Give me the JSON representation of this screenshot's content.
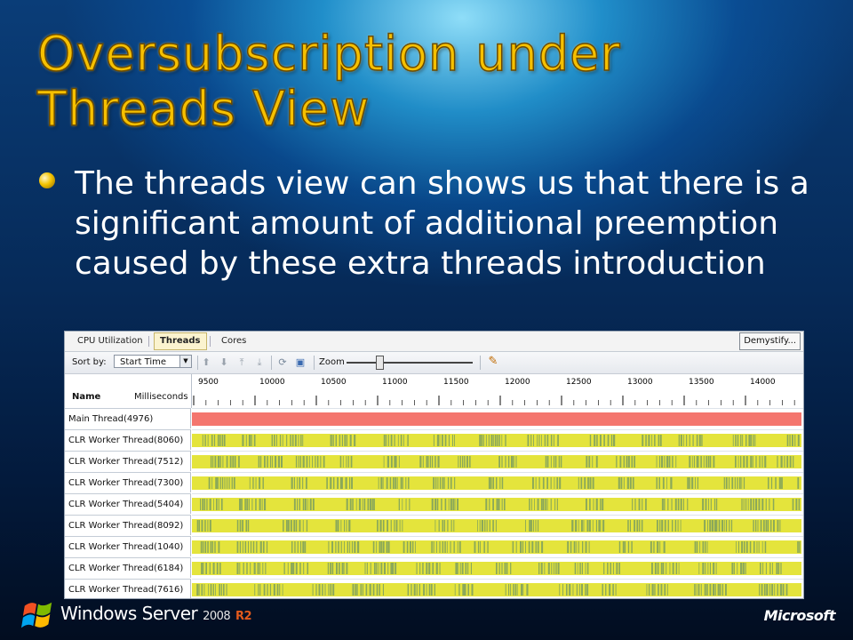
{
  "slide": {
    "title_line1": "Oversubscription under",
    "title_line2": "Threads View",
    "bullet": "The threads view can shows us that there is a significant amount of additional preemption caused by these extra threads introduction"
  },
  "app": {
    "tabs": [
      {
        "label": "CPU Utilization",
        "active": false
      },
      {
        "label": "Threads",
        "active": true
      },
      {
        "label": "Cores",
        "active": false
      }
    ],
    "demystify_label": "Demystify...",
    "toolbar": {
      "sort_label": "Sort by:",
      "sort_value": "Start Time",
      "zoom_label": "Zoom",
      "zoom_level": 0.25
    },
    "columns": {
      "name": "Name",
      "time": "Milliseconds"
    },
    "ruler_ticks": [
      "9500",
      "10000",
      "10500",
      "11000",
      "11500",
      "12000",
      "12500",
      "13000",
      "13500",
      "14000"
    ],
    "threads": [
      {
        "label": "Main Thread(4976)",
        "state": "running"
      },
      {
        "label": "CLR Worker Thread(8060)",
        "state": "mixed"
      },
      {
        "label": "CLR Worker Thread(7512)",
        "state": "mixed"
      },
      {
        "label": "CLR Worker Thread(7300)",
        "state": "mixed"
      },
      {
        "label": "CLR Worker Thread(5404)",
        "state": "mixed"
      },
      {
        "label": "CLR Worker Thread(8092)",
        "state": "mixed"
      },
      {
        "label": "CLR Worker Thread(1040)",
        "state": "mixed"
      },
      {
        "label": "CLR Worker Thread(6184)",
        "state": "mixed"
      },
      {
        "label": "CLR Worker Thread(7616)",
        "state": "mixed"
      }
    ],
    "colors": {
      "main_thread": "#f4766e",
      "preemption": "#e4e43c",
      "execution": "#8aa85a"
    }
  },
  "footer": {
    "brand": "Windows Server",
    "version": "2008",
    "edition": "R2",
    "company": "Microsoft"
  }
}
